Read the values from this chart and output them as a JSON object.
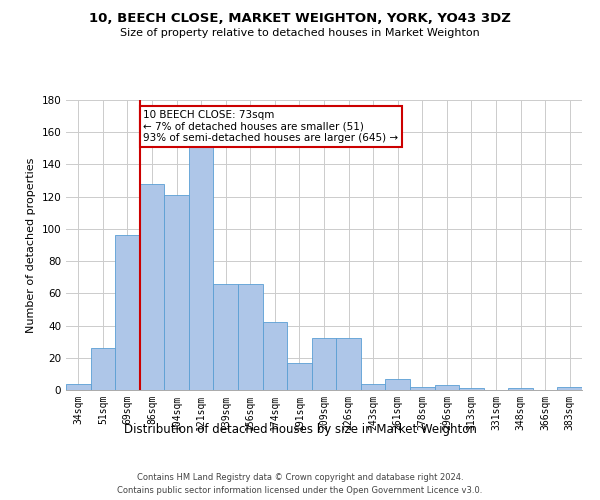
{
  "title": "10, BEECH CLOSE, MARKET WEIGHTON, YORK, YO43 3DZ",
  "subtitle": "Size of property relative to detached houses in Market Weighton",
  "xlabel": "Distribution of detached houses by size in Market Weighton",
  "ylabel": "Number of detached properties",
  "bar_labels": [
    "34sqm",
    "51sqm",
    "69sqm",
    "86sqm",
    "104sqm",
    "121sqm",
    "139sqm",
    "156sqm",
    "174sqm",
    "191sqm",
    "209sqm",
    "226sqm",
    "243sqm",
    "261sqm",
    "278sqm",
    "296sqm",
    "313sqm",
    "331sqm",
    "348sqm",
    "366sqm",
    "383sqm"
  ],
  "bar_values": [
    4,
    26,
    96,
    128,
    121,
    152,
    66,
    66,
    42,
    17,
    32,
    32,
    4,
    7,
    2,
    3,
    1,
    0,
    1,
    0,
    2
  ],
  "bar_color": "#aec6e8",
  "bar_edge_color": "#5a9fd4",
  "red_line_x": 2.5,
  "annotation_line1": "10 BEECH CLOSE: 73sqm",
  "annotation_line2": "← 7% of detached houses are smaller (51)",
  "annotation_line3": "93% of semi-detached houses are larger (645) →",
  "annotation_box_color": "#ffffff",
  "annotation_box_edge_color": "#cc0000",
  "ylim": [
    0,
    180
  ],
  "yticks": [
    0,
    20,
    40,
    60,
    80,
    100,
    120,
    140,
    160,
    180
  ],
  "footer1": "Contains HM Land Registry data © Crown copyright and database right 2024.",
  "footer2": "Contains public sector information licensed under the Open Government Licence v3.0.",
  "background_color": "#ffffff",
  "grid_color": "#cccccc",
  "title_fontsize": 9.5,
  "subtitle_fontsize": 8,
  "ylabel_fontsize": 8,
  "xlabel_fontsize": 8.5,
  "tick_fontsize": 7,
  "annotation_fontsize": 7.5,
  "footer_fontsize": 6
}
